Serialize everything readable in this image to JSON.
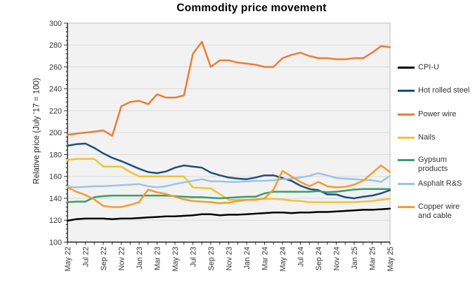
{
  "chart_data": {
    "type": "line",
    "title": "Commodity price movement",
    "ylabel": "Relative price (July '17 = 100)",
    "xlabel": "",
    "ylim": [
      100,
      300
    ],
    "y_major": 20,
    "y_minor": 4,
    "x_tick_every": 2,
    "grid": "horizontal",
    "legend_position": "right",
    "categories": [
      "May 22",
      "Jun 22",
      "Jul 22",
      "Aug 22",
      "Sep 22",
      "Oct 22",
      "Nov 22",
      "Dec 22",
      "Jan 23",
      "Feb 23",
      "Mar 23",
      "Apr 23",
      "May 23",
      "Jun 23",
      "Jul 23",
      "Aug 23",
      "Sep 23",
      "Oct 23",
      "Nov 23",
      "Dec 23",
      "Jan 24",
      "Feb 24",
      "Mar 24",
      "Apr 24",
      "May 24",
      "Jun 24",
      "Jul 24",
      "Aug 24",
      "Sep 24",
      "Oct 24",
      "Nov 24",
      "Dec 24",
      "Jan 25",
      "Feb 25",
      "Mar 25",
      "Apr 25",
      "May 25"
    ],
    "series": [
      {
        "name": "CPI-U",
        "color": "#000000",
        "values": [
          119.5,
          121,
          121.5,
          121.5,
          121.5,
          121,
          121.5,
          121.5,
          122,
          122.5,
          123,
          123.5,
          123.5,
          124,
          124.5,
          125.5,
          125.5,
          124.5,
          125,
          125,
          125.5,
          126,
          126.5,
          127,
          127,
          126.5,
          127,
          127,
          127.5,
          127.5,
          128,
          128.5,
          129,
          129.5,
          129.5,
          130,
          130.5
        ]
      },
      {
        "name": "Hot rolled steel",
        "color": "#1F4E79",
        "values": [
          188,
          189.5,
          190,
          186,
          181,
          177,
          174,
          170.5,
          167,
          164,
          163,
          164.5,
          168,
          170,
          169,
          168,
          163.5,
          161,
          159,
          158,
          157.5,
          159,
          161,
          161,
          158.5,
          156,
          151.5,
          148.5,
          147.5,
          143.5,
          143.5,
          141,
          140,
          141.5,
          142.5,
          144.5,
          147.5
        ]
      },
      {
        "name": "Power wire",
        "color": "#ED7D31",
        "values": [
          198,
          199,
          200,
          201,
          202,
          197,
          224,
          228,
          229,
          226,
          235,
          232,
          232,
          234,
          272,
          283,
          260,
          266,
          266,
          264,
          263,
          262,
          260,
          260,
          268,
          271,
          273,
          270,
          268,
          268,
          267,
          267,
          268,
          268,
          273,
          279,
          278
        ]
      },
      {
        "name": "Nails",
        "color": "#F2C230",
        "values": [
          175,
          176,
          176,
          176,
          169,
          169,
          169,
          164,
          160,
          160,
          160,
          160,
          160,
          160,
          150,
          149.5,
          149,
          144,
          138.5,
          138.5,
          138.5,
          139,
          139.5,
          139.5,
          139,
          138,
          137.5,
          136.5,
          136.5,
          136.5,
          136.5,
          136.5,
          136.5,
          137,
          137.5,
          138.5,
          139.5
        ]
      },
      {
        "name": "Gypsum products",
        "color": "#379E6A",
        "values": [
          136.5,
          137,
          137,
          141,
          142,
          142.5,
          142.5,
          142.5,
          142.5,
          142.5,
          142.5,
          142.5,
          142,
          141.5,
          141,
          141,
          140.5,
          140,
          140.5,
          141,
          141.5,
          141.5,
          144.5,
          146,
          146,
          146,
          146,
          146,
          146.5,
          145.5,
          146,
          147,
          148,
          148.5,
          148.5,
          148.5,
          148.5
        ]
      },
      {
        "name": "Asphalt R&S",
        "color": "#9DC3E6",
        "values": [
          150.5,
          150,
          150.5,
          151,
          151,
          151.5,
          152,
          152.5,
          153,
          151,
          150,
          151,
          153,
          154.5,
          156,
          157.5,
          155.5,
          155.5,
          155,
          155,
          155.5,
          156,
          156,
          156.5,
          157.5,
          158,
          159,
          160.5,
          163,
          161,
          158.5,
          158,
          157.5,
          157,
          156.5,
          155,
          160.5
        ]
      },
      {
        "name": "Copper wire and cable",
        "color": "#F39C2D",
        "values": [
          150,
          146,
          143,
          139,
          133,
          132,
          132,
          134,
          136.5,
          148,
          145.5,
          144,
          141.5,
          139,
          137.5,
          137,
          136.5,
          135.5,
          136,
          137.5,
          138.5,
          138.5,
          140,
          148,
          165,
          160,
          155,
          151,
          155,
          151,
          150,
          150.5,
          152.5,
          156,
          163,
          170,
          164
        ]
      }
    ]
  },
  "y_axis": {
    "tick_labels": [
      "100",
      "120",
      "140",
      "160",
      "180",
      "200",
      "220",
      "240",
      "260",
      "280",
      "300"
    ]
  },
  "legend": {
    "items": [
      "CPI-U",
      "Hot rolled steel",
      "Power wire",
      "Nails",
      "Gypsum products",
      "Asphalt R&S",
      "Copper wire and cable"
    ]
  }
}
